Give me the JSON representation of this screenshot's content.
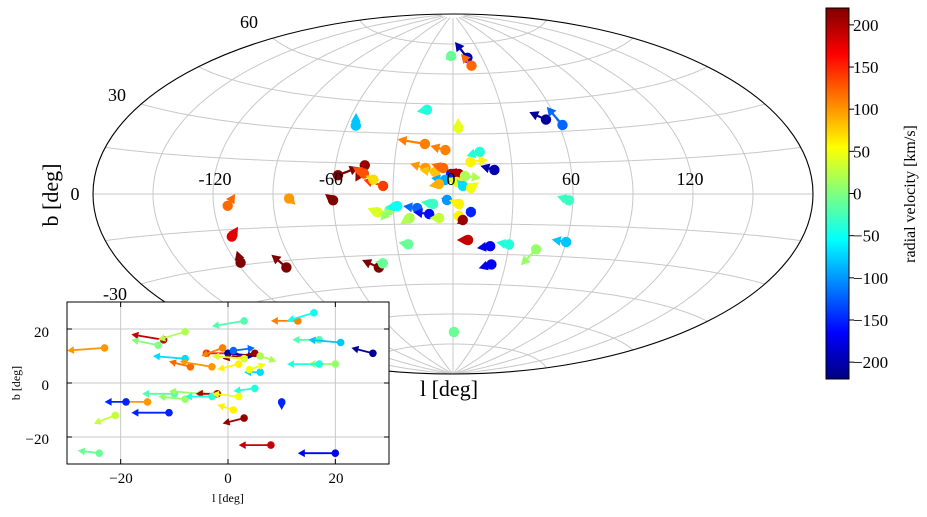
{
  "chart_data": [
    {
      "type": "scatter",
      "projection": "aitoff",
      "xlabel": "l [deg]",
      "ylabel": "b [deg]",
      "x_ticks": [
        "-120",
        "-60",
        "0",
        "60",
        "120"
      ],
      "y_ticks": [
        "60",
        "30",
        "0",
        "-30"
      ],
      "grid": true,
      "colorbar": {
        "label": "radial velocity [km/s]",
        "ticks": [
          "200",
          "150",
          "100",
          "50",
          "0",
          "−50",
          "−100",
          "−150",
          "−200"
        ],
        "range": [
          -220,
          220
        ],
        "colormap": "jet"
      },
      "points": [
        {
          "l": -2,
          "b": 69,
          "dl": -6,
          "db": -2,
          "v": -10
        },
        {
          "l": 15,
          "b": 68,
          "dl": -12,
          "db": 8,
          "v": -200
        },
        {
          "l": 17,
          "b": 64,
          "dl": -8,
          "db": 6,
          "v": 120
        },
        {
          "l": -16,
          "b": 42,
          "dl": -6,
          "db": -1,
          "v": -40
        },
        {
          "l": 3,
          "b": 33,
          "dl": 0,
          "db": 5,
          "v": 45
        },
        {
          "l": 54,
          "b": 36,
          "dl": -8,
          "db": 4,
          "v": -210
        },
        {
          "l": 62,
          "b": 33,
          "dl": -4,
          "db": 9,
          "v": -120
        },
        {
          "l": -55,
          "b": 33,
          "dl": -3,
          "db": 6,
          "v": -80
        },
        {
          "l": -15,
          "b": 25,
          "dl": -15,
          "db": 2,
          "v": 110
        },
        {
          "l": -4,
          "b": 22,
          "dl": -8,
          "db": 2,
          "v": 110
        },
        {
          "l": 14,
          "b": 21,
          "dl": -7,
          "db": -2,
          "v": -40
        },
        {
          "l": 9,
          "b": 16,
          "dl": 9,
          "db": 1,
          "v": 60
        },
        {
          "l": 21,
          "b": 12,
          "dl": -7,
          "db": 2,
          "v": -200
        },
        {
          "l": -14,
          "b": 13,
          "dl": -8,
          "db": 2,
          "v": 100
        },
        {
          "l": -9,
          "b": 11,
          "dl": -8,
          "db": 1,
          "v": 80
        },
        {
          "l": -5,
          "b": 13,
          "dl": -6,
          "db": 2,
          "v": 120
        },
        {
          "l": -1,
          "b": 10,
          "dl": 6,
          "db": -2,
          "v": -150
        },
        {
          "l": 3,
          "b": 10,
          "dl": -6,
          "db": 2,
          "v": 200
        },
        {
          "l": 6,
          "b": 9,
          "dl": 8,
          "db": -1,
          "v": 20
        },
        {
          "l": -4,
          "b": 7,
          "dl": -7,
          "db": 1,
          "v": -90
        },
        {
          "l": 2,
          "b": 6,
          "dl": -5,
          "db": 2,
          "v": 40
        },
        {
          "l": 5,
          "b": 4,
          "dl": -3,
          "db": 3,
          "v": -70
        },
        {
          "l": 9,
          "b": 3,
          "dl": 4,
          "db": 3,
          "v": 50
        },
        {
          "l": -7,
          "b": 5,
          "dl": -5,
          "db": -1,
          "v": 90
        },
        {
          "l": -58,
          "b": 9,
          "dl": 10,
          "db": 4,
          "v": 220
        },
        {
          "l": -45,
          "b": 14,
          "dl": -4,
          "db": -8,
          "v": 210
        },
        {
          "l": -45,
          "b": 10,
          "dl": -6,
          "db": 3,
          "v": 130
        },
        {
          "l": -35,
          "b": 4,
          "dl": -10,
          "db": 3,
          "v": 140
        },
        {
          "l": -40,
          "b": 7,
          "dl": -4,
          "db": 2,
          "v": 70
        },
        {
          "l": -3,
          "b": -3,
          "dl": -3,
          "db": 1,
          "v": -100
        },
        {
          "l": -10,
          "b": -5,
          "dl": -6,
          "db": 1,
          "v": -30
        },
        {
          "l": -18,
          "b": -7,
          "dl": -7,
          "db": 1,
          "v": -120
        },
        {
          "l": -22,
          "b": -12,
          "dl": -5,
          "db": -3,
          "v": 20
        },
        {
          "l": -12,
          "b": -10,
          "dl": -8,
          "db": 1,
          "v": -160
        },
        {
          "l": -7,
          "b": -12,
          "dl": -5,
          "db": 0,
          "v": 30
        },
        {
          "l": 3,
          "b": -5,
          "dl": -5,
          "db": 2,
          "v": 60
        },
        {
          "l": 3,
          "b": -11,
          "dl": -3,
          "db": 1,
          "v": 60
        },
        {
          "l": 5,
          "b": -13,
          "dl": -3,
          "db": -2,
          "v": 210
        },
        {
          "l": 9,
          "b": -9,
          "dl": 0,
          "db": -3,
          "v": -150
        },
        {
          "l": 8,
          "b": -23,
          "dl": -6,
          "db": 0,
          "v": 190
        },
        {
          "l": 20,
          "b": -26,
          "dl": -7,
          "db": -1,
          "v": -170
        },
        {
          "l": -24,
          "b": -25,
          "dl": -5,
          "db": 1,
          "v": -10
        },
        {
          "l": -32,
          "b": -8,
          "dl": -5,
          "db": -5,
          "v": 10
        },
        {
          "l": -28,
          "b": -6,
          "dl": -6,
          "db": -1,
          "v": -50
        },
        {
          "l": -38,
          "b": -9,
          "dl": -5,
          "db": 2,
          "v": 40
        },
        {
          "l": 58,
          "b": -3,
          "dl": -6,
          "db": 2,
          "v": -30
        },
        {
          "l": -113,
          "b": -5,
          "dl": 4,
          "db": 5,
          "v": 120
        },
        {
          "l": -82,
          "b": -2,
          "dl": 3,
          "db": -3,
          "v": 100
        },
        {
          "l": -60,
          "b": -3,
          "dl": -4,
          "db": 3,
          "v": 220
        },
        {
          "l": -115,
          "b": -18,
          "dl": 5,
          "db": 4,
          "v": 180
        },
        {
          "l": -118,
          "b": -29,
          "dl": 2,
          "db": 5,
          "v": 220
        },
        {
          "l": -95,
          "b": -33,
          "dl": -4,
          "db": 6,
          "v": 220
        },
        {
          "l": 60,
          "b": -23,
          "dl": -8,
          "db": 1,
          "v": -80
        },
        {
          "l": 45,
          "b": -27,
          "dl": -6,
          "db": -8,
          "v": 10
        },
        {
          "l": 30,
          "b": -25,
          "dl": -7,
          "db": 1,
          "v": -40
        },
        {
          "l": 22,
          "b": -35,
          "dl": -7,
          "db": -2,
          "v": -170
        },
        {
          "l": -43,
          "b": -36,
          "dl": -8,
          "db": 4,
          "v": 220
        },
        {
          "l": -40,
          "b": -34,
          "dl": -4,
          "db": 1,
          "v": -10
        },
        {
          "l": 1,
          "b": -69,
          "dl": -4,
          "db": 2,
          "v": -10
        }
      ]
    },
    {
      "type": "scatter",
      "title": "",
      "xlabel": "l [deg]",
      "ylabel": "b [deg]",
      "xlim": [
        -30,
        30
      ],
      "ylim": [
        -30,
        30
      ],
      "x_ticks": [
        "−20",
        "0",
        "20"
      ],
      "y_ticks": [
        "20",
        "0",
        "−20"
      ],
      "grid": true,
      "points": [
        {
          "l": -23,
          "b": 13,
          "dl": -7,
          "db": -1,
          "v": 100
        },
        {
          "l": -12,
          "b": 16,
          "dl": -6,
          "db": 2,
          "v": 190
        },
        {
          "l": -8,
          "b": 19,
          "dl": -5,
          "db": -3,
          "v": 20
        },
        {
          "l": -13,
          "b": 14,
          "dl": -5,
          "db": 2,
          "v": 0
        },
        {
          "l": 3,
          "b": 23,
          "dl": -6,
          "db": -2,
          "v": -20
        },
        {
          "l": 13,
          "b": 23,
          "dl": -5,
          "db": 0,
          "v": 110
        },
        {
          "l": 16,
          "b": 26,
          "dl": -5,
          "db": -3,
          "v": -50
        },
        {
          "l": 17,
          "b": 16,
          "dl": -5,
          "db": 0,
          "v": -20
        },
        {
          "l": 21,
          "b": 15,
          "dl": -6,
          "db": 1,
          "v": -80
        },
        {
          "l": 27,
          "b": 11,
          "dl": -4,
          "db": 2,
          "v": -210
        },
        {
          "l": 20,
          "b": 7,
          "dl": -5,
          "db": 0,
          "v": 10
        },
        {
          "l": 17,
          "b": 7,
          "dl": -6,
          "db": 0,
          "v": -40
        },
        {
          "l": -8,
          "b": 9,
          "dl": -6,
          "db": 1,
          "v": -70
        },
        {
          "l": -4,
          "b": 11,
          "dl": 6,
          "db": 0,
          "v": 150
        },
        {
          "l": -7,
          "b": 6,
          "dl": -4,
          "db": 2,
          "v": 120
        },
        {
          "l": -1,
          "b": 13,
          "dl": -4,
          "db": -3,
          "v": 110
        },
        {
          "l": 0,
          "b": 11,
          "dl": 5,
          "db": -1,
          "v": -200
        },
        {
          "l": 5,
          "b": 11,
          "dl": -6,
          "db": -2,
          "v": 210
        },
        {
          "l": 6,
          "b": 10,
          "dl": 3,
          "db": -2,
          "v": 20
        },
        {
          "l": 3,
          "b": 9,
          "dl": -6,
          "db": 1,
          "v": 40
        },
        {
          "l": 2,
          "b": 7,
          "dl": -4,
          "db": -2,
          "v": 60
        },
        {
          "l": 6,
          "b": 4,
          "dl": -3,
          "db": 0,
          "v": -70
        },
        {
          "l": 4,
          "b": 5,
          "dl": 3,
          "db": 2,
          "v": 50
        },
        {
          "l": -3,
          "b": 6,
          "dl": -6,
          "db": 2,
          "v": 100
        },
        {
          "l": 1,
          "b": 12,
          "dl": 4,
          "db": 1,
          "v": -120
        },
        {
          "l": 5,
          "b": -2,
          "dl": -4,
          "db": -1,
          "v": -40
        },
        {
          "l": -10,
          "b": -4,
          "dl": -6,
          "db": 0,
          "v": -20
        },
        {
          "l": -5,
          "b": -4,
          "dl": -6,
          "db": 1,
          "v": 10
        },
        {
          "l": -2,
          "b": -4,
          "dl": -4,
          "db": 0,
          "v": 200
        },
        {
          "l": -11,
          "b": -11,
          "dl": -7,
          "db": 0,
          "v": -150
        },
        {
          "l": -15,
          "b": -7,
          "dl": -5,
          "db": 0,
          "v": 100
        },
        {
          "l": -19,
          "b": -7,
          "dl": -4,
          "db": 0,
          "v": -150
        },
        {
          "l": -21,
          "b": -12,
          "dl": -4,
          "db": -3,
          "v": 30
        },
        {
          "l": -8,
          "b": -6,
          "dl": -5,
          "db": 1,
          "v": 10
        },
        {
          "l": -3,
          "b": -5,
          "dl": -5,
          "db": 0,
          "v": -40
        },
        {
          "l": 2,
          "b": -5,
          "dl": -5,
          "db": 1,
          "v": 50
        },
        {
          "l": 1,
          "b": -10,
          "dl": -3,
          "db": 2,
          "v": 60
        },
        {
          "l": 3,
          "b": -13,
          "dl": -4,
          "db": -2,
          "v": 210
        },
        {
          "l": 10,
          "b": -7,
          "dl": 0,
          "db": -3,
          "v": -150
        },
        {
          "l": 8,
          "b": -23,
          "dl": -6,
          "db": 0,
          "v": 190
        },
        {
          "l": 20,
          "b": -26,
          "dl": -7,
          "db": 0,
          "v": -170
        },
        {
          "l": -24,
          "b": -26,
          "dl": -4,
          "db": 1,
          "v": -10
        }
      ]
    }
  ]
}
